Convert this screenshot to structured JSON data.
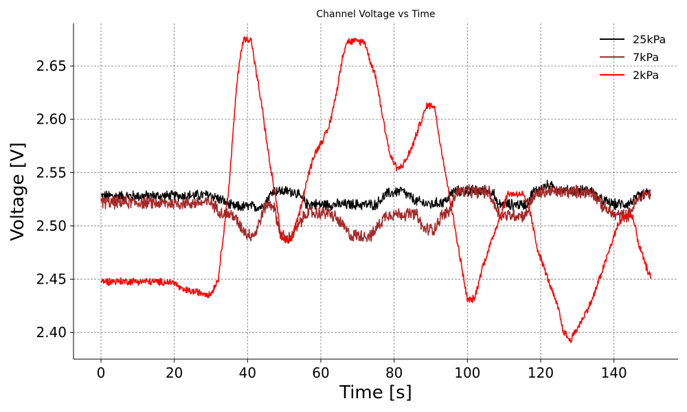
{
  "chart_data": {
    "type": "line",
    "title": "Channel Voltage vs Time",
    "xlabel": "Time [s]",
    "ylabel": "Voltage [V]",
    "xlim": [
      -7.5,
      157.5
    ],
    "ylim": [
      2.375,
      2.69
    ],
    "xticks": [
      0,
      20,
      40,
      60,
      80,
      100,
      120,
      140
    ],
    "yticks": [
      2.4,
      2.45,
      2.5,
      2.55,
      2.6,
      2.65
    ],
    "ytick_labels": [
      "2.40",
      "2.45",
      "2.50",
      "2.55",
      "2.60",
      "2.65"
    ],
    "grid": true,
    "legend_position": "top-right",
    "series": [
      {
        "name": "25kPa",
        "color": "#000000",
        "noise": 0.006,
        "points": [
          [
            0,
            2.528
          ],
          [
            10,
            2.528
          ],
          [
            20,
            2.528
          ],
          [
            30,
            2.529
          ],
          [
            33,
            2.524
          ],
          [
            36,
            2.518
          ],
          [
            44,
            2.518
          ],
          [
            47,
            2.533
          ],
          [
            53,
            2.532
          ],
          [
            56,
            2.521
          ],
          [
            60,
            2.52
          ],
          [
            75,
            2.52
          ],
          [
            78,
            2.53
          ],
          [
            82,
            2.533
          ],
          [
            86,
            2.523
          ],
          [
            90,
            2.52
          ],
          [
            94,
            2.523
          ],
          [
            96,
            2.532
          ],
          [
            100,
            2.533
          ],
          [
            107,
            2.533
          ],
          [
            108,
            2.52
          ],
          [
            116,
            2.52
          ],
          [
            118,
            2.532
          ],
          [
            122,
            2.538
          ],
          [
            126,
            2.533
          ],
          [
            134,
            2.533
          ],
          [
            136,
            2.525
          ],
          [
            140,
            2.52
          ],
          [
            144,
            2.521
          ],
          [
            147,
            2.528
          ],
          [
            150,
            2.532
          ]
        ]
      },
      {
        "name": "7kPa",
        "color": "#a52a2a",
        "noise": 0.007,
        "points": [
          [
            0,
            2.522
          ],
          [
            10,
            2.522
          ],
          [
            20,
            2.521
          ],
          [
            30,
            2.522
          ],
          [
            33,
            2.512
          ],
          [
            36,
            2.51
          ],
          [
            38,
            2.5
          ],
          [
            40,
            2.492
          ],
          [
            42,
            2.492
          ],
          [
            45,
            2.52
          ],
          [
            47,
            2.52
          ],
          [
            49,
            2.492
          ],
          [
            51,
            2.487
          ],
          [
            53,
            2.495
          ],
          [
            56,
            2.512
          ],
          [
            62,
            2.512
          ],
          [
            64,
            2.508
          ],
          [
            66,
            2.5
          ],
          [
            68,
            2.491
          ],
          [
            74,
            2.491
          ],
          [
            76,
            2.502
          ],
          [
            78,
            2.511
          ],
          [
            86,
            2.511
          ],
          [
            88,
            2.497
          ],
          [
            91,
            2.497
          ],
          [
            93,
            2.51
          ],
          [
            95,
            2.513
          ],
          [
            97,
            2.532
          ],
          [
            106,
            2.532
          ],
          [
            107,
            2.522
          ],
          [
            109,
            2.51
          ],
          [
            116,
            2.51
          ],
          [
            118,
            2.528
          ],
          [
            121,
            2.532
          ],
          [
            134,
            2.532
          ],
          [
            137,
            2.518
          ],
          [
            140,
            2.51
          ],
          [
            144,
            2.51
          ],
          [
            146,
            2.522
          ],
          [
            148,
            2.53
          ],
          [
            150,
            2.53
          ]
        ]
      },
      {
        "name": "2kPa",
        "color": "#ff0000",
        "noise": 0.004,
        "points": [
          [
            0,
            2.448
          ],
          [
            10,
            2.448
          ],
          [
            20,
            2.447
          ],
          [
            22,
            2.44
          ],
          [
            26,
            2.438
          ],
          [
            30,
            2.436
          ],
          [
            32,
            2.45
          ],
          [
            33,
            2.48
          ],
          [
            35,
            2.54
          ],
          [
            37,
            2.63
          ],
          [
            38,
            2.66
          ],
          [
            39,
            2.675
          ],
          [
            41,
            2.675
          ],
          [
            42,
            2.652
          ],
          [
            44,
            2.61
          ],
          [
            46,
            2.56
          ],
          [
            48,
            2.52
          ],
          [
            49,
            2.49
          ],
          [
            50,
            2.485
          ],
          [
            52,
            2.488
          ],
          [
            54,
            2.51
          ],
          [
            56,
            2.54
          ],
          [
            58,
            2.565
          ],
          [
            60,
            2.578
          ],
          [
            62,
            2.59
          ],
          [
            64,
            2.62
          ],
          [
            66,
            2.66
          ],
          [
            67,
            2.673
          ],
          [
            72,
            2.673
          ],
          [
            73,
            2.66
          ],
          [
            75,
            2.64
          ],
          [
            77,
            2.6
          ],
          [
            79,
            2.565
          ],
          [
            81,
            2.553
          ],
          [
            83,
            2.56
          ],
          [
            85,
            2.575
          ],
          [
            87,
            2.595
          ],
          [
            89,
            2.613
          ],
          [
            91,
            2.613
          ],
          [
            92,
            2.59
          ],
          [
            94,
            2.55
          ],
          [
            96,
            2.51
          ],
          [
            98,
            2.47
          ],
          [
            100,
            2.43
          ],
          [
            102,
            2.432
          ],
          [
            104,
            2.46
          ],
          [
            106,
            2.48
          ],
          [
            108,
            2.5
          ],
          [
            110,
            2.52
          ],
          [
            111,
            2.53
          ],
          [
            115,
            2.53
          ],
          [
            117,
            2.515
          ],
          [
            119,
            2.48
          ],
          [
            121,
            2.46
          ],
          [
            123,
            2.44
          ],
          [
            125,
            2.42
          ],
          [
            126,
            2.403
          ],
          [
            128,
            2.392
          ],
          [
            129,
            2.398
          ],
          [
            131,
            2.41
          ],
          [
            134,
            2.43
          ],
          [
            137,
            2.46
          ],
          [
            139,
            2.48
          ],
          [
            141,
            2.5
          ],
          [
            143,
            2.51
          ],
          [
            145,
            2.51
          ],
          [
            146,
            2.495
          ],
          [
            147,
            2.48
          ],
          [
            148,
            2.47
          ],
          [
            149,
            2.46
          ],
          [
            150,
            2.452
          ]
        ]
      }
    ]
  }
}
